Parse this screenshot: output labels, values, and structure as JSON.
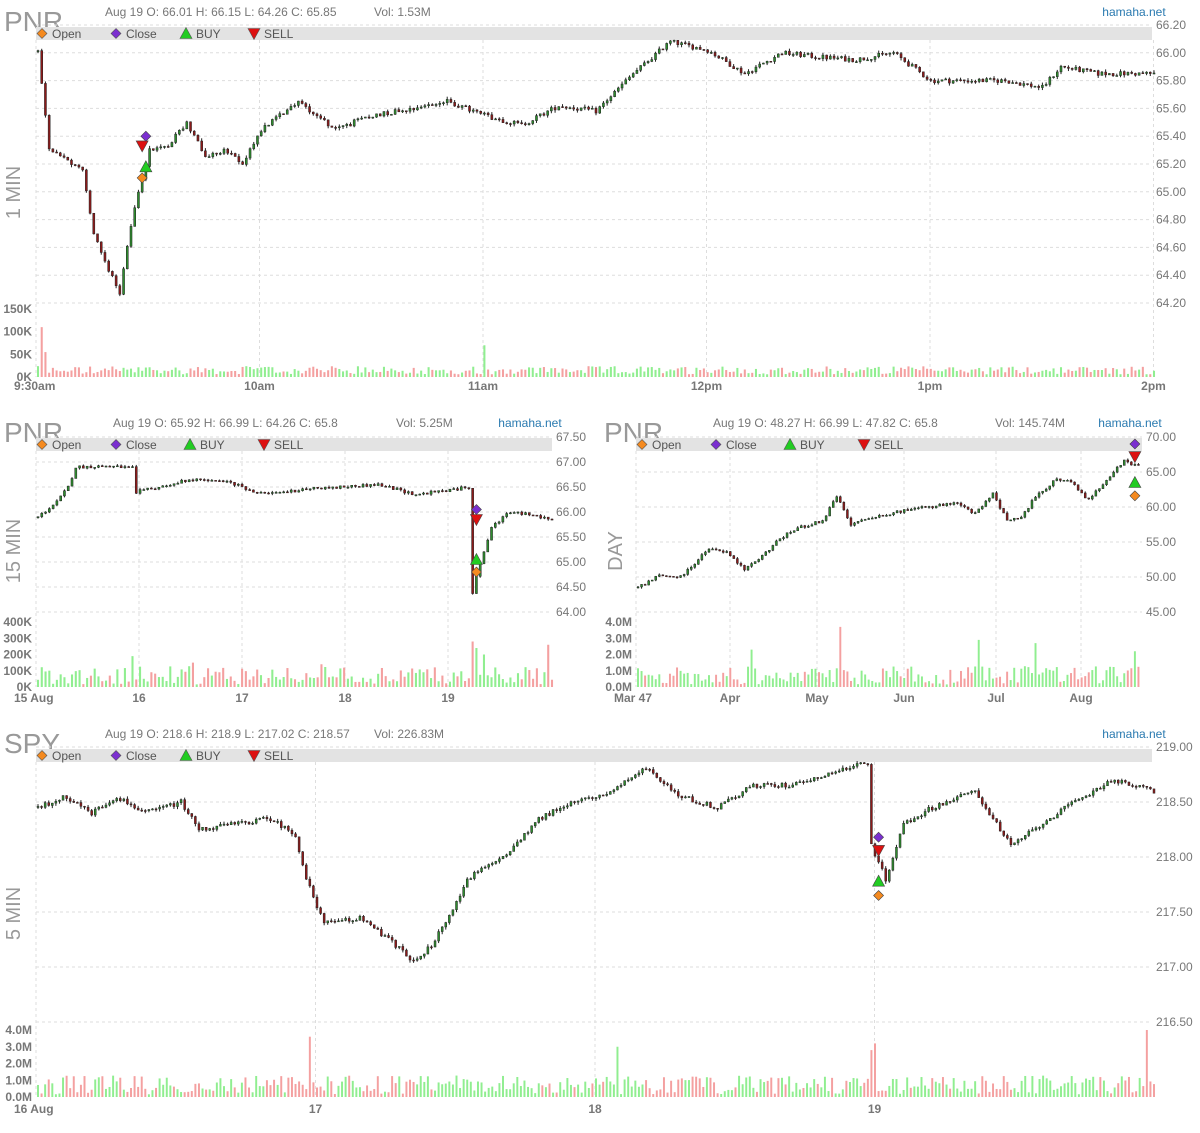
{
  "colors": {
    "up": "#2e8b2e",
    "down": "#8b1a1a",
    "vol_up": "#90ee90",
    "vol_down": "#f4a0a0",
    "grid": "#dddddd",
    "legend_bg": "#e3e3e3",
    "site": "#2a7ab0",
    "symbol": "#999999",
    "text": "#777777",
    "open_marker": "#f58a1f",
    "close_marker": "#7b2fd0",
    "buy_marker": "#22cc22",
    "sell_marker": "#dd1111"
  },
  "legend": {
    "open": "Open",
    "close": "Close",
    "buy": "BUY",
    "sell": "SELL"
  },
  "chart_data": [
    {
      "type": "candlestick",
      "symbol": "PNR",
      "timeframe": "1 MIN",
      "site": "hamaha.net",
      "header": "Aug 19 O: 66.01 H: 66.15 L: 64.26 C: 65.85",
      "volume_text": "Vol: 1.53M",
      "ohlc": {
        "open": 66.01,
        "high": 66.15,
        "low": 64.26,
        "close": 65.85
      },
      "ylim": [
        64.2,
        66.2
      ],
      "yticks": [
        "66.20",
        "66.00",
        "65.80",
        "65.60",
        "65.40",
        "65.20",
        "65.00",
        "64.80",
        "64.60",
        "64.40",
        "64.20"
      ],
      "x_ticks": [
        "9:30am",
        "10am",
        "11am",
        "12pm",
        "1pm",
        "2pm"
      ],
      "vol_ticks": [
        "150K",
        "100K",
        "50K",
        "0K"
      ],
      "vol_max": 150000,
      "count": 300,
      "path": [
        [
          0,
          66.01
        ],
        [
          3,
          65.3
        ],
        [
          12,
          65.15
        ],
        [
          15,
          64.7
        ],
        [
          18,
          64.5
        ],
        [
          22,
          64.28
        ],
        [
          26,
          64.9
        ],
        [
          30,
          65.3
        ],
        [
          35,
          65.33
        ],
        [
          40,
          65.5
        ],
        [
          45,
          65.25
        ],
        [
          50,
          65.3
        ],
        [
          55,
          65.2
        ],
        [
          60,
          65.45
        ],
        [
          65,
          65.55
        ],
        [
          70,
          65.65
        ],
        [
          75,
          65.55
        ],
        [
          80,
          65.45
        ],
        [
          90,
          65.55
        ],
        [
          100,
          65.6
        ],
        [
          110,
          65.65
        ],
        [
          120,
          65.55
        ],
        [
          130,
          65.48
        ],
        [
          140,
          65.62
        ],
        [
          150,
          65.58
        ],
        [
          160,
          65.85
        ],
        [
          170,
          66.08
        ],
        [
          180,
          66.02
        ],
        [
          190,
          65.85
        ],
        [
          200,
          66.0
        ],
        [
          210,
          65.97
        ],
        [
          220,
          65.95
        ],
        [
          230,
          66.0
        ],
        [
          240,
          65.8
        ],
        [
          260,
          65.8
        ],
        [
          270,
          65.75
        ],
        [
          275,
          65.9
        ],
        [
          285,
          65.85
        ],
        [
          300,
          65.85
        ]
      ],
      "vol_spikes": [
        [
          1,
          110000
        ],
        [
          2,
          55000
        ],
        [
          120,
          70000
        ],
        [
          167,
          20000
        ]
      ],
      "markers": [
        {
          "kind": "open",
          "i": 28,
          "price": 65.1
        },
        {
          "kind": "buy",
          "i": 29,
          "price": 65.18
        },
        {
          "kind": "sell",
          "i": 28,
          "price": 65.33
        },
        {
          "kind": "close",
          "i": 29,
          "price": 65.4
        }
      ]
    },
    {
      "type": "candlestick",
      "symbol": "PNR",
      "timeframe": "15 MIN",
      "site": "hamaha.net",
      "header": "Aug 19 O: 65.92 H: 66.99 L: 64.26 C: 65.8",
      "volume_text": "Vol: 5.25M",
      "ohlc": {
        "open": 65.92,
        "high": 66.99,
        "low": 64.26,
        "close": 65.8
      },
      "ylim": [
        64.0,
        67.5
      ],
      "yticks": [
        "67.50",
        "67.00",
        "66.50",
        "66.00",
        "65.50",
        "65.00",
        "64.50",
        "64.00"
      ],
      "x_ticks": [
        "15 Aug",
        "16",
        "17",
        "18",
        "19"
      ],
      "vol_ticks": [
        "400K",
        "300K",
        "200K",
        "100K",
        "0K"
      ],
      "vol_max": 400000,
      "count": 136,
      "path": [
        [
          0,
          65.9
        ],
        [
          5,
          66.2
        ],
        [
          8,
          66.5
        ],
        [
          10,
          66.9
        ],
        [
          18,
          66.92
        ],
        [
          25,
          66.88
        ],
        [
          26,
          66.4
        ],
        [
          32,
          66.5
        ],
        [
          40,
          66.65
        ],
        [
          50,
          66.6
        ],
        [
          60,
          66.35
        ],
        [
          70,
          66.45
        ],
        [
          80,
          66.5
        ],
        [
          90,
          66.55
        ],
        [
          100,
          66.35
        ],
        [
          110,
          66.45
        ],
        [
          114,
          66.5
        ],
        [
          115,
          64.4
        ],
        [
          117,
          65.0
        ],
        [
          120,
          65.7
        ],
        [
          125,
          66.0
        ],
        [
          130,
          65.95
        ],
        [
          136,
          65.85
        ]
      ],
      "gaps": [
        [
          115,
          65.85
        ],
        [
          117,
          0
        ]
      ],
      "vol_spikes": [
        [
          25,
          190000
        ],
        [
          41,
          150000
        ],
        [
          75,
          140000
        ],
        [
          115,
          280000
        ],
        [
          116,
          240000
        ],
        [
          118,
          200000
        ],
        [
          135,
          260000
        ]
      ],
      "markers": [
        {
          "kind": "open",
          "i": 116,
          "price": 64.8
        },
        {
          "kind": "buy",
          "i": 116,
          "price": 65.05
        },
        {
          "kind": "sell",
          "i": 116,
          "price": 65.85
        },
        {
          "kind": "close",
          "i": 116,
          "price": 66.05
        }
      ]
    },
    {
      "type": "candlestick",
      "symbol": "PNR",
      "timeframe": "DAY",
      "site": "hamaha.net",
      "header": "Aug 19 O: 48.27 H: 66.99 L: 47.82 C: 65.8",
      "volume_text": "Vol: 145.74M",
      "ohlc": {
        "open": 48.27,
        "high": 66.99,
        "low": 47.82,
        "close": 65.8
      },
      "ylim": [
        45.0,
        70.0
      ],
      "yticks": [
        "70.00",
        "65.00",
        "60.00",
        "55.00",
        "50.00",
        "45.00"
      ],
      "x_ticks": [
        "Mar 47",
        "Apr",
        "May",
        "Jun",
        "Jul",
        "Aug"
      ],
      "vol_ticks": [
        "4.0M",
        "3.0M",
        "2.0M",
        "1.0M",
        "0.0M"
      ],
      "vol_max": 4000000,
      "count": 122,
      "path": [
        [
          0,
          48.5
        ],
        [
          6,
          50.2
        ],
        [
          12,
          50.0
        ],
        [
          16,
          52.0
        ],
        [
          20,
          54.0
        ],
        [
          25,
          53.5
        ],
        [
          30,
          51.0
        ],
        [
          35,
          53.0
        ],
        [
          40,
          55.5
        ],
        [
          45,
          57.0
        ],
        [
          52,
          58.0
        ],
        [
          56,
          61.5
        ],
        [
          60,
          57.5
        ],
        [
          65,
          58.5
        ],
        [
          75,
          59.5
        ],
        [
          82,
          60.0
        ],
        [
          90,
          60.5
        ],
        [
          95,
          59.0
        ],
        [
          100,
          62.0
        ],
        [
          104,
          58.0
        ],
        [
          108,
          58.5
        ],
        [
          112,
          61.5
        ],
        [
          118,
          64.0
        ],
        [
          122,
          63.5
        ],
        [
          127,
          61.0
        ],
        [
          132,
          64.0
        ],
        [
          137,
          66.5
        ],
        [
          140,
          66.0
        ],
        [
          141,
          65.8
        ]
      ],
      "vol_spikes": [
        [
          57,
          3700000
        ],
        [
          96,
          2900000
        ],
        [
          32,
          2300000
        ],
        [
          112,
          2700000
        ],
        [
          140,
          2200000
        ]
      ],
      "markers": [
        {
          "kind": "open",
          "i": 140,
          "price": 61.6
        },
        {
          "kind": "buy",
          "i": 140,
          "price": 63.5
        },
        {
          "kind": "sell",
          "i": 140,
          "price": 67.2
        },
        {
          "kind": "close",
          "i": 140,
          "price": 69.0
        }
      ]
    },
    {
      "type": "candlestick",
      "symbol": "SPY",
      "timeframe": "5 MIN",
      "site": "hamaha.net",
      "header": "Aug 19 O: 218.6 H: 218.9 L: 217.02 C: 218.57",
      "volume_text": "Vol: 226.83M",
      "ohlc": {
        "open": 218.6,
        "high": 218.9,
        "low": 217.02,
        "close": 218.57
      },
      "ylim": [
        216.5,
        219.0
      ],
      "yticks": [
        "219.00",
        "218.50",
        "218.00",
        "217.50",
        "217.00",
        "216.50"
      ],
      "x_ticks": [
        "16 Aug",
        "17",
        "18",
        "19"
      ],
      "vol_ticks": [
        "4.0M",
        "3.0M",
        "2.0M",
        "1.0M",
        "0.0M"
      ],
      "vol_max": 4000000,
      "count": 312,
      "path": [
        [
          0,
          218.45
        ],
        [
          8,
          218.55
        ],
        [
          15,
          218.4
        ],
        [
          22,
          218.55
        ],
        [
          30,
          218.4
        ],
        [
          40,
          218.5
        ],
        [
          45,
          218.25
        ],
        [
          55,
          218.3
        ],
        [
          65,
          218.35
        ],
        [
          72,
          218.2
        ],
        [
          75,
          217.8
        ],
        [
          80,
          217.4
        ],
        [
          90,
          217.45
        ],
        [
          100,
          217.2
        ],
        [
          105,
          217.05
        ],
        [
          110,
          217.2
        ],
        [
          115,
          217.45
        ],
        [
          120,
          217.8
        ],
        [
          130,
          218.0
        ],
        [
          140,
          218.35
        ],
        [
          150,
          218.5
        ],
        [
          160,
          218.6
        ],
        [
          170,
          218.8
        ],
        [
          180,
          218.55
        ],
        [
          190,
          218.45
        ],
        [
          200,
          218.65
        ],
        [
          210,
          218.65
        ],
        [
          220,
          218.75
        ],
        [
          230,
          218.85
        ],
        [
          232,
          218.85
        ],
        [
          233,
          218.1
        ],
        [
          237,
          217.8
        ],
        [
          242,
          218.3
        ],
        [
          250,
          218.45
        ],
        [
          262,
          218.6
        ],
        [
          272,
          218.1
        ],
        [
          285,
          218.4
        ],
        [
          300,
          218.7
        ],
        [
          312,
          218.6
        ]
      ],
      "vol_spikes": [
        [
          76,
          3600000
        ],
        [
          162,
          3000000
        ],
        [
          233,
          2800000
        ],
        [
          234,
          3200000
        ],
        [
          310,
          4000000
        ]
      ],
      "markers": [
        {
          "kind": "open",
          "i": 235,
          "price": 217.65
        },
        {
          "kind": "buy",
          "i": 235,
          "price": 217.78
        },
        {
          "kind": "sell",
          "i": 235,
          "price": 218.06
        },
        {
          "kind": "close",
          "i": 235,
          "price": 218.18
        }
      ]
    }
  ]
}
